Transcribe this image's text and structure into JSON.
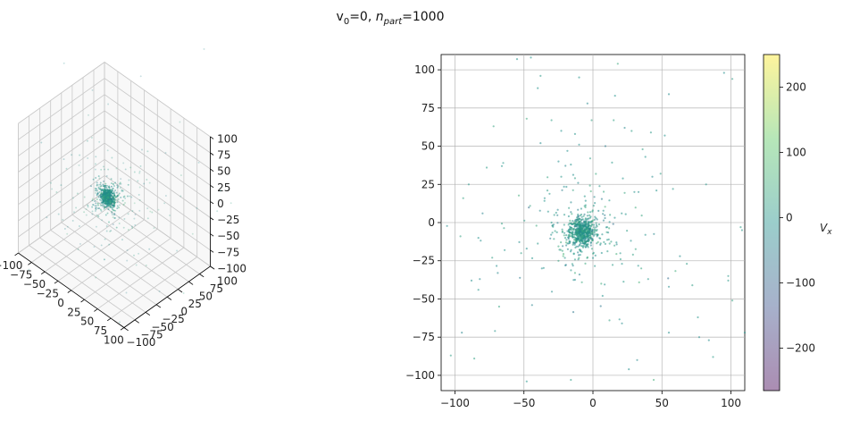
{
  "figure": {
    "title_main": "v",
    "title_sub0": "0",
    "title_eq0": "=0, ",
    "title_n": "n",
    "title_sub_part": "part",
    "title_eq1": "=1000"
  },
  "colors": {
    "cmap_stops": [
      "#440154",
      "#3b528b",
      "#21918c",
      "#5ec962",
      "#fde725"
    ],
    "grid": "#b0b0b0",
    "axis": "#000000"
  },
  "chart_data": [
    {
      "type": "scatter",
      "projection": "3d",
      "xlim": [
        -100,
        100
      ],
      "ylim": [
        -100,
        100
      ],
      "zlim": [
        -100,
        100
      ],
      "x_ticks": [
        "-100",
        "-75",
        "-50",
        "-25",
        "0",
        "25",
        "50",
        "75",
        "100"
      ],
      "y_ticks": [
        "-100",
        "-75",
        "-50",
        "-25",
        "0",
        "25",
        "50",
        "75",
        "100"
      ],
      "z_ticks": [
        "-100",
        "-75",
        "-50",
        "-25",
        "0",
        "25",
        "50",
        "75",
        "100"
      ],
      "grid": true,
      "cluster_center": [
        -8,
        -6,
        -5
      ],
      "n_points": 1000
    },
    {
      "type": "scatter",
      "xlim": [
        -110,
        110
      ],
      "ylim": [
        -110,
        110
      ],
      "x_ticks": [
        "-100",
        "-50",
        "0",
        "50",
        "100"
      ],
      "y_ticks": [
        "-100",
        "-75",
        "-50",
        "-25",
        "0",
        "25",
        "50",
        "75",
        "100"
      ],
      "grid": true,
      "cluster_center": [
        -8,
        -6
      ],
      "outliers": [
        [
          -55,
          107
        ],
        [
          -45,
          108
        ],
        [
          18,
          104
        ],
        [
          -38,
          96
        ],
        [
          -40,
          88
        ],
        [
          -10,
          95
        ],
        [
          16,
          83
        ],
        [
          95,
          98
        ],
        [
          101,
          94
        ],
        [
          -30,
          67
        ],
        [
          -72,
          63
        ],
        [
          15,
          67
        ],
        [
          -1,
          67
        ],
        [
          52,
          57
        ],
        [
          55,
          84
        ],
        [
          -65,
          39
        ],
        [
          -66,
          37
        ],
        [
          -77,
          36
        ],
        [
          -25,
          40
        ],
        [
          -23,
          30
        ],
        [
          -38,
          52
        ],
        [
          -48,
          68
        ],
        [
          -90,
          25
        ],
        [
          -94,
          16
        ],
        [
          -80,
          6
        ],
        [
          -83,
          -10
        ],
        [
          -96,
          -9
        ],
        [
          -64,
          -18
        ],
        [
          -48,
          -17
        ],
        [
          -73,
          -23
        ],
        [
          -69,
          -33
        ],
        [
          -88,
          -38
        ],
        [
          -82,
          -37
        ],
        [
          -83,
          -44
        ],
        [
          -68,
          -55
        ],
        [
          -95,
          -72
        ],
        [
          -71,
          -71
        ],
        [
          -103,
          -87
        ],
        [
          -48,
          -104
        ],
        [
          -16,
          -103
        ],
        [
          26,
          -96
        ],
        [
          32,
          -90
        ],
        [
          44,
          -103
        ],
        [
          77,
          -75
        ],
        [
          84,
          -77
        ],
        [
          87,
          -88
        ],
        [
          76,
          -62
        ],
        [
          101,
          -51
        ],
        [
          98,
          -38
        ],
        [
          98,
          -35
        ],
        [
          108,
          -5
        ],
        [
          107,
          -3
        ],
        [
          63,
          -22
        ],
        [
          72,
          -41
        ],
        [
          68,
          -27
        ],
        [
          55,
          -42
        ],
        [
          55,
          -72
        ],
        [
          36,
          48
        ],
        [
          38,
          43
        ],
        [
          43,
          30
        ],
        [
          49,
          32
        ],
        [
          58,
          22
        ],
        [
          46,
          21
        ],
        [
          30,
          20
        ],
        [
          33,
          20
        ],
        [
          38,
          -8
        ],
        [
          35,
          -30
        ],
        [
          40,
          -37
        ],
        [
          20,
          -24
        ],
        [
          21,
          -27
        ],
        [
          9,
          -14
        ],
        [
          17,
          -13
        ],
        [
          21,
          -66
        ],
        [
          12,
          -64
        ],
        [
          6,
          -40
        ],
        [
          7,
          -48
        ],
        [
          29,
          -21
        ],
        [
          -13,
          -33
        ],
        [
          -20,
          -28
        ],
        [
          -33,
          21
        ],
        [
          -35,
          16
        ],
        [
          -28,
          5
        ],
        [
          -30,
          0
        ],
        [
          -37,
          -30
        ],
        [
          -13,
          58
        ],
        [
          9,
          50
        ],
        [
          -13,
          29
        ],
        [
          -2,
          42
        ],
        [
          -16,
          38
        ],
        [
          82,
          25
        ],
        [
          42,
          59
        ],
        [
          28,
          60
        ],
        [
          23,
          62
        ],
        [
          -4,
          78
        ],
        [
          110,
          -72
        ],
        [
          -10,
          51
        ],
        [
          -86,
          -89
        ],
        [
          -52,
          -20
        ]
      ]
    }
  ],
  "colorbar": {
    "label": "V",
    "label_sub": "x",
    "range": [
      -265,
      250
    ],
    "ticks": [
      "200",
      "100",
      "0",
      "−100",
      "−200"
    ],
    "alpha": 0.45
  }
}
